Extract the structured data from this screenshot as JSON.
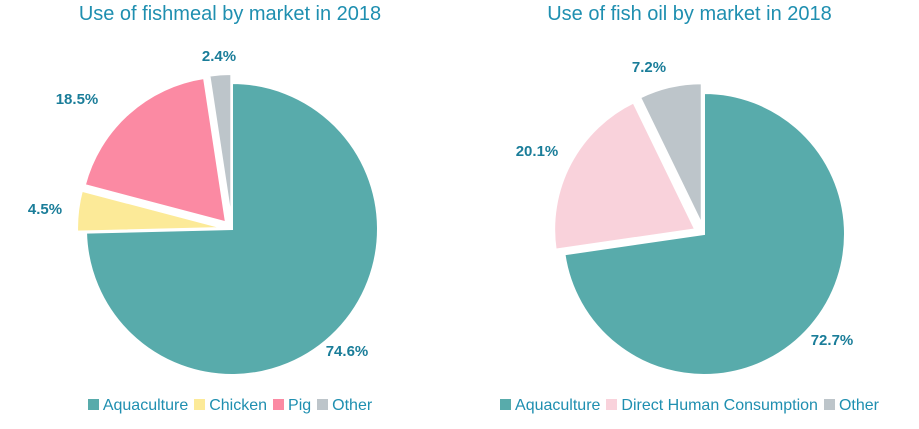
{
  "chart_data": [
    {
      "type": "pie",
      "title": "Use of fishmeal by market in 2018",
      "categories": [
        "Aquaculture",
        "Chicken",
        "Pig",
        "Other"
      ],
      "values": [
        74.6,
        4.5,
        18.5,
        2.4
      ],
      "labels": [
        "74.6%",
        "4.5%",
        "18.5%",
        "2.4%"
      ],
      "colors": [
        "#58abab",
        "#fcea98",
        "#fb8aa3",
        "#bdc5ca"
      ],
      "legend_position": "bottom"
    },
    {
      "type": "pie",
      "title": "Use of fish oil by market in 2018",
      "categories": [
        "Aquaculture",
        "Direct Human Consumption",
        "Other"
      ],
      "values": [
        72.7,
        20.1,
        7.2
      ],
      "labels": [
        "72.7%",
        "20.1%",
        "7.2%"
      ],
      "colors": [
        "#58abab",
        "#f9d2db",
        "#bdc5ca"
      ],
      "legend_position": "bottom"
    }
  ]
}
